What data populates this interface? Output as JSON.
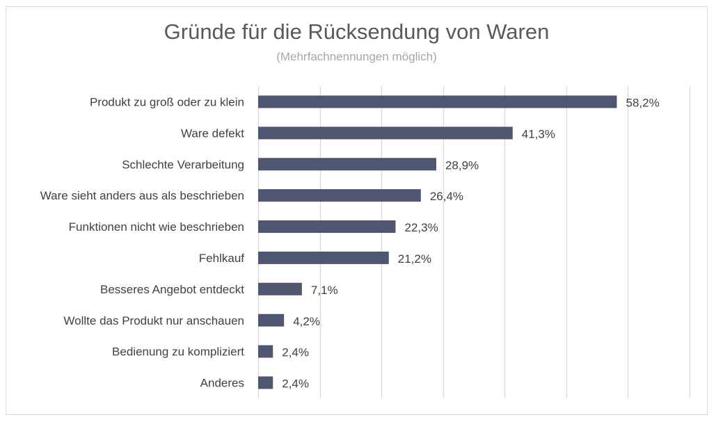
{
  "chart_data": {
    "type": "bar",
    "orientation": "horizontal",
    "title": "Gründe für die Rücksendung von Waren",
    "subtitle": "(Mehrfachnennungen möglich)",
    "categories": [
      "Produkt zu groß oder zu klein",
      "Ware defekt",
      "Schlechte Verarbeitung",
      "Ware sieht anders aus als beschrieben",
      "Funktionen nicht wie beschrieben",
      "Fehlkauf",
      "Besseres Angebot entdeckt",
      "Wollte das Produkt nur anschauen",
      "Bedienung zu kompliziert",
      "Anderes"
    ],
    "values": [
      58.2,
      41.3,
      28.9,
      26.4,
      22.3,
      21.2,
      7.1,
      4.2,
      2.4,
      2.4
    ],
    "value_labels": [
      "58,2%",
      "41,3%",
      "28,9%",
      "26,4%",
      "22,3%",
      "21,2%",
      "7,1%",
      "4,2%",
      "2,4%",
      "2,4%"
    ],
    "xlim": [
      0,
      70
    ],
    "grid": true,
    "legend": "none",
    "bar_color": "#4f5672",
    "grid_color": "#d9d9d9"
  }
}
